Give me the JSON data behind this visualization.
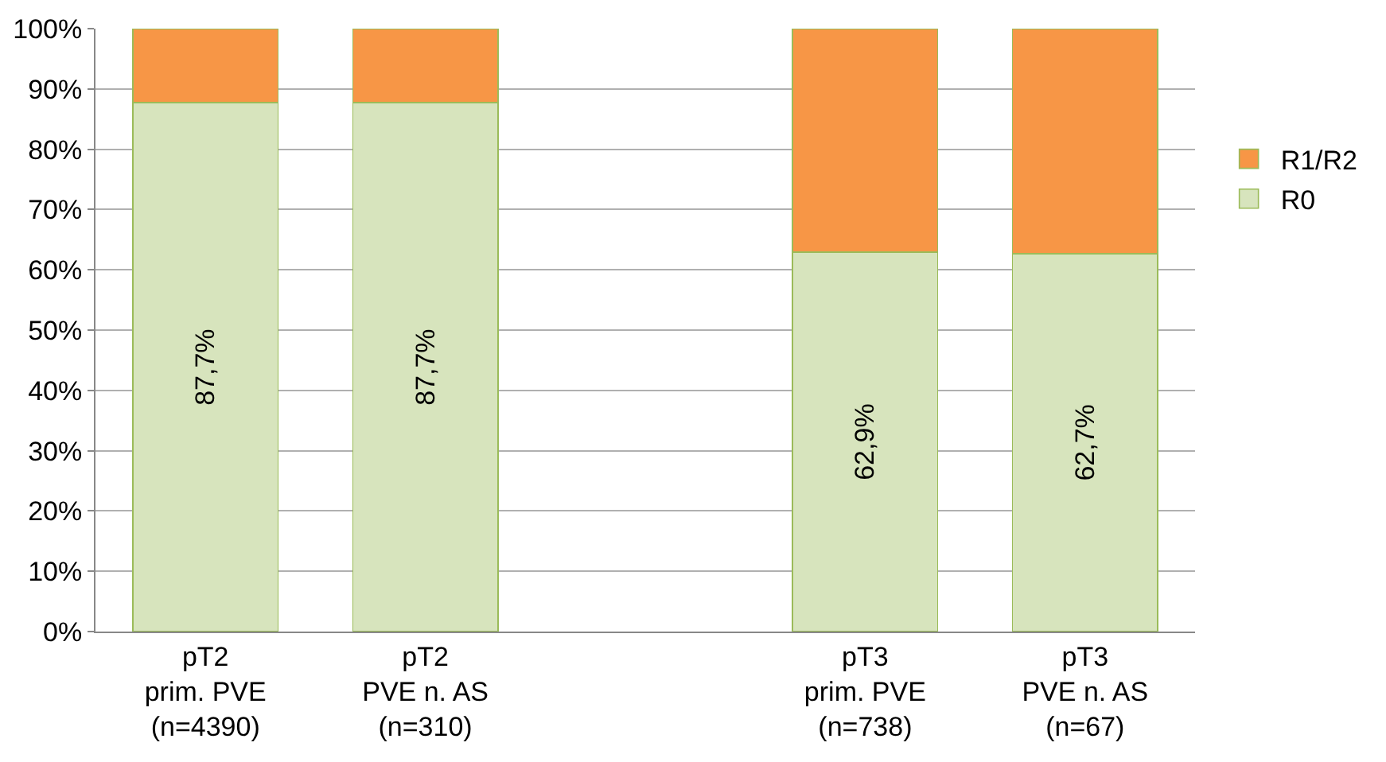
{
  "chart_data": {
    "type": "bar",
    "stacked": true,
    "categories": [
      "pT2\nprim. PVE\n(n=4390)",
      "pT2\nPVE n. AS\n(n=310)",
      null,
      "pT3\nprim. PVE\n(n=738)",
      "pT3\nPVE n. AS\n(n=67)"
    ],
    "series": [
      {
        "name": "R0",
        "color": "#d7e4bd",
        "values": [
          87.7,
          87.7,
          null,
          62.9,
          62.7
        ],
        "value_labels": [
          "87,7%",
          "87,7%",
          null,
          "62,9%",
          "62,7%"
        ]
      },
      {
        "name": "R1/R2",
        "color": "#f79646",
        "values": [
          12.3,
          12.3,
          null,
          37.1,
          37.3
        ]
      }
    ],
    "ylim": [
      0,
      100
    ],
    "yticks": [
      {
        "value": 0,
        "label": "0%"
      },
      {
        "value": 10,
        "label": "10%"
      },
      {
        "value": 20,
        "label": "20%"
      },
      {
        "value": 30,
        "label": "30%"
      },
      {
        "value": 40,
        "label": "40%"
      },
      {
        "value": 50,
        "label": "50%"
      },
      {
        "value": 60,
        "label": "60%"
      },
      {
        "value": 70,
        "label": "70%"
      },
      {
        "value": 80,
        "label": "80%"
      },
      {
        "value": 90,
        "label": "90%"
      },
      {
        "value": 100,
        "label": "100%"
      }
    ],
    "grid": "y",
    "legend": "right"
  }
}
